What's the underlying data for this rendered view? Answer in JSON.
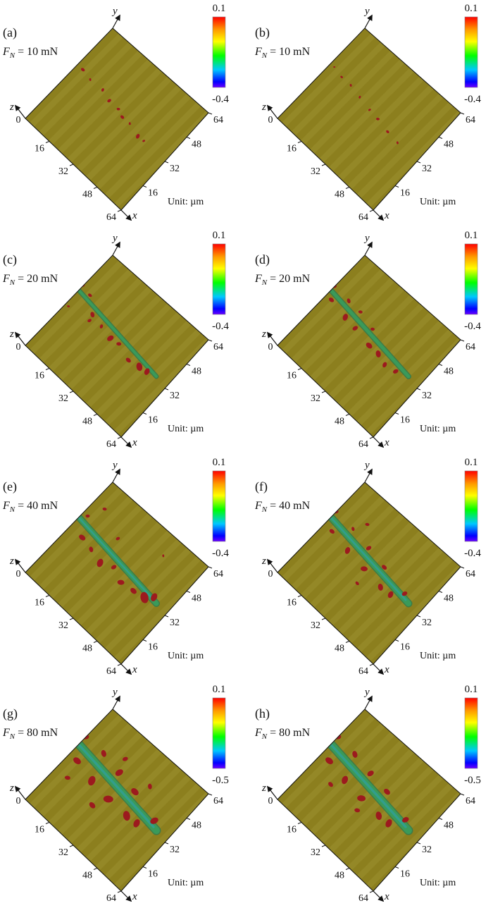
{
  "figure": {
    "panels": [
      {
        "label": "(a)",
        "force_sym": "F",
        "force_sub": "N",
        "force_value": "= 10 mN",
        "colorbar_max": "0.1",
        "colorbar_min": "-0.4",
        "x_ticks": [
          "16",
          "32",
          "48",
          "64"
        ],
        "y_ticks": [
          "16",
          "32",
          "48",
          "64"
        ],
        "z_tick": "0",
        "axis_x": "x",
        "axis_y": "y",
        "axis_z": "z",
        "unit": "Unit: µm"
      },
      {
        "label": "(b)",
        "force_sym": "F",
        "force_sub": "N",
        "force_value": "= 10 mN",
        "colorbar_max": "0.1",
        "colorbar_min": "-0.4",
        "x_ticks": [
          "16",
          "32",
          "48",
          "64"
        ],
        "y_ticks": [
          "16",
          "32",
          "48",
          "64"
        ],
        "z_tick": "0",
        "axis_x": "x",
        "axis_y": "y",
        "axis_z": "z",
        "unit": "Unit: µm"
      },
      {
        "label": "(c)",
        "force_sym": "F",
        "force_sub": "N",
        "force_value": "= 20 mN",
        "colorbar_max": "0.1",
        "colorbar_min": "-0.4",
        "x_ticks": [
          "16",
          "32",
          "48",
          "64"
        ],
        "y_ticks": [
          "16",
          "32",
          "48",
          "64"
        ],
        "z_tick": "0",
        "axis_x": "x",
        "axis_y": "y",
        "axis_z": "z",
        "unit": "Unit: µm"
      },
      {
        "label": "(d)",
        "force_sym": "F",
        "force_sub": "N",
        "force_value": "= 20 mN",
        "colorbar_max": "0.1",
        "colorbar_min": "-0.4",
        "x_ticks": [
          "16",
          "32",
          "48",
          "64"
        ],
        "y_ticks": [
          "16",
          "32",
          "48",
          "64"
        ],
        "z_tick": "0",
        "axis_x": "x",
        "axis_y": "y",
        "axis_z": "z",
        "unit": "Unit: µm"
      },
      {
        "label": "(e)",
        "force_sym": "F",
        "force_sub": "N",
        "force_value": "= 40 mN",
        "colorbar_max": "0.1",
        "colorbar_min": "-0.4",
        "x_ticks": [
          "16",
          "32",
          "48",
          "64"
        ],
        "y_ticks": [
          "16",
          "32",
          "48",
          "64"
        ],
        "z_tick": "0",
        "axis_x": "x",
        "axis_y": "y",
        "axis_z": "z",
        "unit": "Unit: µm"
      },
      {
        "label": "(f)",
        "force_sym": "F",
        "force_sub": "N",
        "force_value": "= 40 mN",
        "colorbar_max": "0.1",
        "colorbar_min": "-0.4",
        "x_ticks": [
          "16",
          "32",
          "48",
          "64"
        ],
        "y_ticks": [
          "16",
          "32",
          "48",
          "64"
        ],
        "z_tick": "0",
        "axis_x": "x",
        "axis_y": "y",
        "axis_z": "z",
        "unit": "Unit: µm"
      },
      {
        "label": "(g)",
        "force_sym": "F",
        "force_sub": "N",
        "force_value": "= 80 mN",
        "colorbar_max": "0.1",
        "colorbar_min": "-0.5",
        "x_ticks": [
          "16",
          "32",
          "48",
          "64"
        ],
        "y_ticks": [
          "16",
          "32",
          "48",
          "64"
        ],
        "z_tick": "0",
        "axis_x": "x",
        "axis_y": "y",
        "axis_z": "z",
        "unit": "Unit: µm"
      },
      {
        "label": "(h)",
        "force_sym": "F",
        "force_sub": "N",
        "force_value": "= 80 mN",
        "colorbar_max": "0.1",
        "colorbar_min": "-0.5",
        "x_ticks": [
          "16",
          "32",
          "48",
          "64"
        ],
        "y_ticks": [
          "16",
          "32",
          "48",
          "64"
        ],
        "z_tick": "0",
        "axis_x": "x",
        "axis_y": "y",
        "axis_z": "z",
        "unit": "Unit: µm"
      }
    ],
    "colors": {
      "surface": "#8c7f1e",
      "surface_light": "#9a8f30",
      "groove": "#3a9a5a",
      "wear_debris": "#9c1a1e",
      "colorbar_stops": [
        "#ff0000",
        "#ff9900",
        "#ffff00",
        "#00ff00",
        "#00d0ff",
        "#0000ff",
        "#6a00ff"
      ]
    }
  }
}
